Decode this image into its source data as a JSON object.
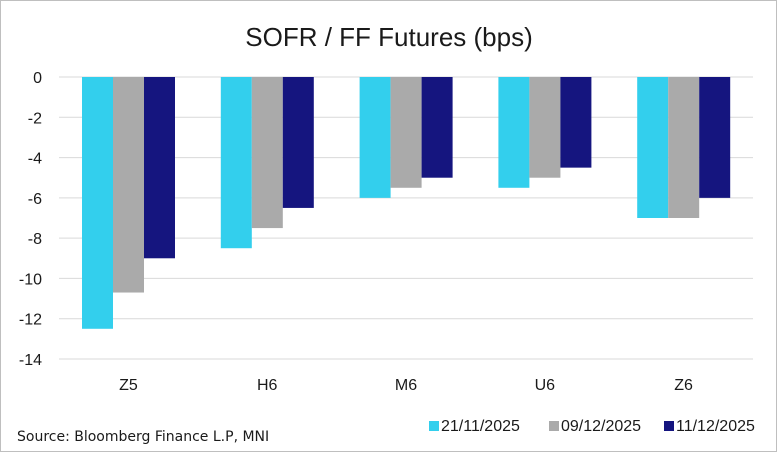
{
  "chart_data": {
    "type": "bar",
    "title": "SOFR / FF Futures (bps)",
    "xlabel": "",
    "ylabel": "",
    "categories": [
      "Z5",
      "H6",
      "M6",
      "U6",
      "Z6"
    ],
    "series": [
      {
        "name": "21/11/2025",
        "color": "#33cfed",
        "values": [
          -12.5,
          -8.5,
          -6.0,
          -5.5,
          -7.0
        ]
      },
      {
        "name": "09/12/2025",
        "color": "#aaaaaa",
        "values": [
          -10.7,
          -7.5,
          -5.5,
          -5.0,
          -7.0
        ]
      },
      {
        "name": "11/12/2025",
        "color": "#15157f",
        "values": [
          -9.0,
          -6.5,
          -5.0,
          -4.5,
          -6.0
        ]
      }
    ],
    "ylim": [
      -14,
      0
    ],
    "yticks": [
      0,
      -2,
      -4,
      -6,
      -8,
      -10,
      -12,
      -14
    ],
    "grid": true,
    "legend_position": "bottom-right"
  },
  "source": "Source: Bloomberg Finance L.P, MNI"
}
